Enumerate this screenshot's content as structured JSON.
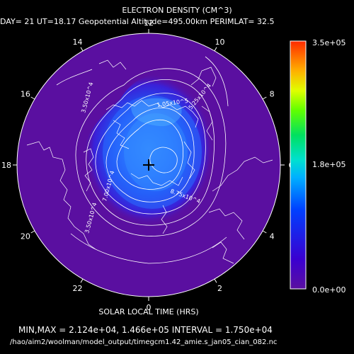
{
  "title": "ELECTRON DENSITY (CM^3)",
  "subtitle": "DAY= 21 UT=18.17 Geopotential Altitude=495.00km PERIMLAT= 32.5",
  "xlabel": "SOLAR LOCAL TIME (HRS)",
  "minmax_line": "MIN,MAX = 2.124e+04, 1.466e+05 INTERVAL = 1.750e+04",
  "file_path": "/hao/aim2/woolman/model_output/timegcm1.42_amie.s_jan05_cian_082.nc",
  "colors": {
    "background": "#000000",
    "min_color": "#5a0fa0",
    "max_color": "#ff2a00",
    "contour": "#ffffff"
  },
  "chart_data": {
    "type": "heatmap",
    "projection": "polar stereographic (north pole centered)",
    "perimeter_latitude": 32.5,
    "local_time_ticks": [
      "12",
      "10",
      "8",
      "6",
      "4",
      "2",
      "0",
      "22",
      "20",
      "18",
      "16",
      "14"
    ],
    "colorbar": {
      "min": 0,
      "max": 350000,
      "labels": [
        "3.5e+05",
        "1.8e+05",
        "0.0e+00"
      ]
    },
    "data_min": 21240,
    "data_max": 146600,
    "contour_interval": 17500,
    "contour_labels": [
      "1.05x10^5",
      "3.50x10^4",
      "7.00x10^4",
      "5.25x10^4",
      "3.50x10^4",
      "8.75x10^4"
    ]
  }
}
